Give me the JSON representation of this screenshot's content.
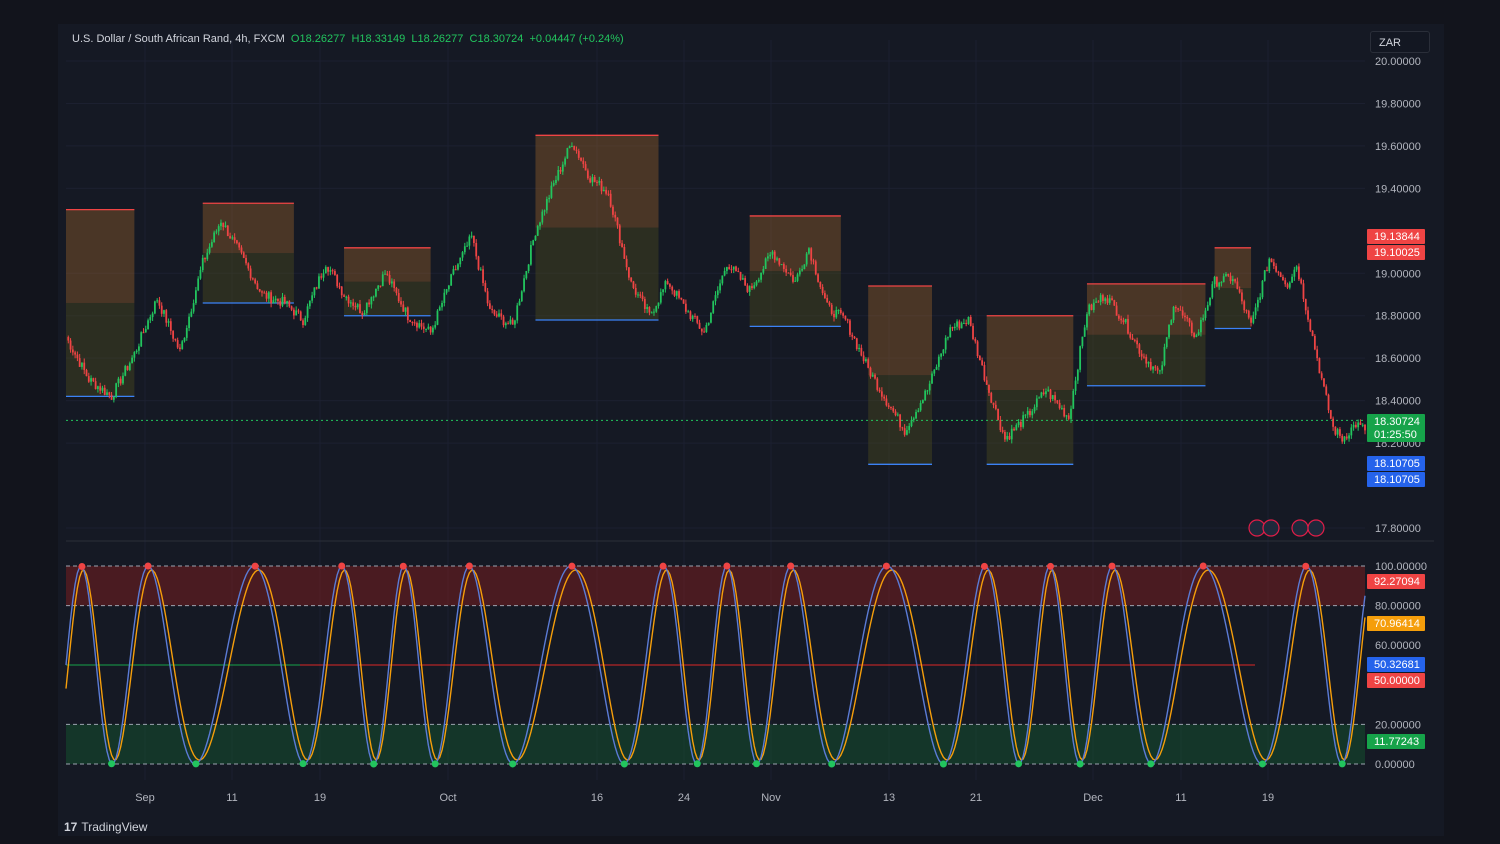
{
  "header": {
    "symbol": "U.S. Dollar / South African Rand, 4h, FXCM",
    "open": "O18.26277",
    "high": "H18.33149",
    "low": "L18.26277",
    "close": "C18.30724",
    "change": "+0.04447 (+0.24%)"
  },
  "currency_button": "ZAR",
  "brand": {
    "logo": "17",
    "name": "TradingView"
  },
  "colors": {
    "up": "#22c55e",
    "down": "#ef4444",
    "k_line": "#5b7bd5",
    "d_line": "#f59e0b",
    "bg": "#151924"
  },
  "chart_data": [
    {
      "type": "candlestick",
      "title": "",
      "price_axis_ticks": [
        "20.00000",
        "19.80000",
        "19.60000",
        "19.40000",
        "19.00000",
        "18.80000",
        "18.60000",
        "18.40000",
        "18.20000",
        "17.80000"
      ],
      "ylim": [
        17.75,
        20.02
      ],
      "x_tick_labels": [
        "Sep",
        "11",
        "19",
        "Oct",
        "16",
        "24",
        "Nov",
        "13",
        "21",
        "Dec",
        "11",
        "19"
      ],
      "waypoints": [
        [
          0,
          18.7
        ],
        [
          10,
          18.5
        ],
        [
          20,
          18.42
        ],
        [
          30,
          18.62
        ],
        [
          40,
          18.88
        ],
        [
          50,
          18.63
        ],
        [
          60,
          19.05
        ],
        [
          68,
          19.25
        ],
        [
          76,
          19.1
        ],
        [
          86,
          18.9
        ],
        [
          96,
          18.86
        ],
        [
          104,
          18.78
        ],
        [
          114,
          19.05
        ],
        [
          122,
          18.9
        ],
        [
          130,
          18.82
        ],
        [
          140,
          19.0
        ],
        [
          150,
          18.8
        ],
        [
          160,
          18.72
        ],
        [
          170,
          19.0
        ],
        [
          178,
          19.17
        ],
        [
          186,
          18.82
        ],
        [
          196,
          18.75
        ],
        [
          206,
          19.2
        ],
        [
          214,
          19.42
        ],
        [
          222,
          19.62
        ],
        [
          230,
          19.45
        ],
        [
          238,
          19.38
        ],
        [
          248,
          18.95
        ],
        [
          256,
          18.8
        ],
        [
          264,
          18.96
        ],
        [
          272,
          18.83
        ],
        [
          280,
          18.72
        ],
        [
          290,
          19.05
        ],
        [
          300,
          18.92
        ],
        [
          310,
          19.1
        ],
        [
          320,
          18.96
        ],
        [
          326,
          19.12
        ],
        [
          334,
          18.84
        ],
        [
          342,
          18.78
        ],
        [
          352,
          18.55
        ],
        [
          360,
          18.4
        ],
        [
          368,
          18.26
        ],
        [
          378,
          18.45
        ],
        [
          388,
          18.74
        ],
        [
          396,
          18.78
        ],
        [
          404,
          18.48
        ],
        [
          412,
          18.22
        ],
        [
          422,
          18.33
        ],
        [
          430,
          18.45
        ],
        [
          440,
          18.32
        ],
        [
          448,
          18.82
        ],
        [
          456,
          18.9
        ],
        [
          464,
          18.78
        ],
        [
          472,
          18.62
        ],
        [
          480,
          18.52
        ],
        [
          486,
          18.86
        ],
        [
          496,
          18.7
        ],
        [
          504,
          18.96
        ],
        [
          512,
          18.98
        ],
        [
          520,
          18.75
        ],
        [
          528,
          19.07
        ],
        [
          536,
          18.95
        ],
        [
          540,
          19.04
        ],
        [
          546,
          18.75
        ],
        [
          552,
          18.45
        ],
        [
          556,
          18.27
        ],
        [
          560,
          18.22
        ],
        [
          566,
          18.29
        ],
        [
          570,
          18.26
        ]
      ],
      "price_levels": [
        {
          "name": "zone-top",
          "value": "19.13844",
          "color": "#ef4444"
        },
        {
          "name": "zone-mid",
          "value": "19.10025",
          "color": "#ef4444"
        },
        {
          "name": "last-price",
          "value": "18.30724",
          "color": "#16a34a"
        },
        {
          "name": "countdown",
          "value": "01:25:50",
          "color": "#16a34a"
        },
        {
          "name": "support-1",
          "value": "18.10705",
          "color": "#2563eb"
        },
        {
          "name": "support-2",
          "value": "18.10705",
          "color": "#2563eb"
        }
      ]
    },
    {
      "type": "line",
      "title": "",
      "indicator_axis_ticks": [
        "100.00000",
        "80.00000",
        "60.00000",
        "20.00000",
        "0.00000"
      ],
      "ylim": [
        0,
        100
      ],
      "overbought": 80,
      "oversold": 20,
      "midline": 50,
      "indicator_levels": [
        {
          "name": "indicator-value-top",
          "value": "92.27094",
          "color": "#ef4444"
        },
        {
          "name": "indicator-value-d",
          "value": "70.96414",
          "color": "#f59e0b"
        },
        {
          "name": "indicator-value-k",
          "value": "50.32681",
          "color": "#2563eb"
        },
        {
          "name": "indicator-midline",
          "value": "50.00000",
          "color": "#ef4444"
        },
        {
          "name": "indicator-value-low",
          "value": "11.77243",
          "color": "#16a34a"
        }
      ]
    }
  ]
}
